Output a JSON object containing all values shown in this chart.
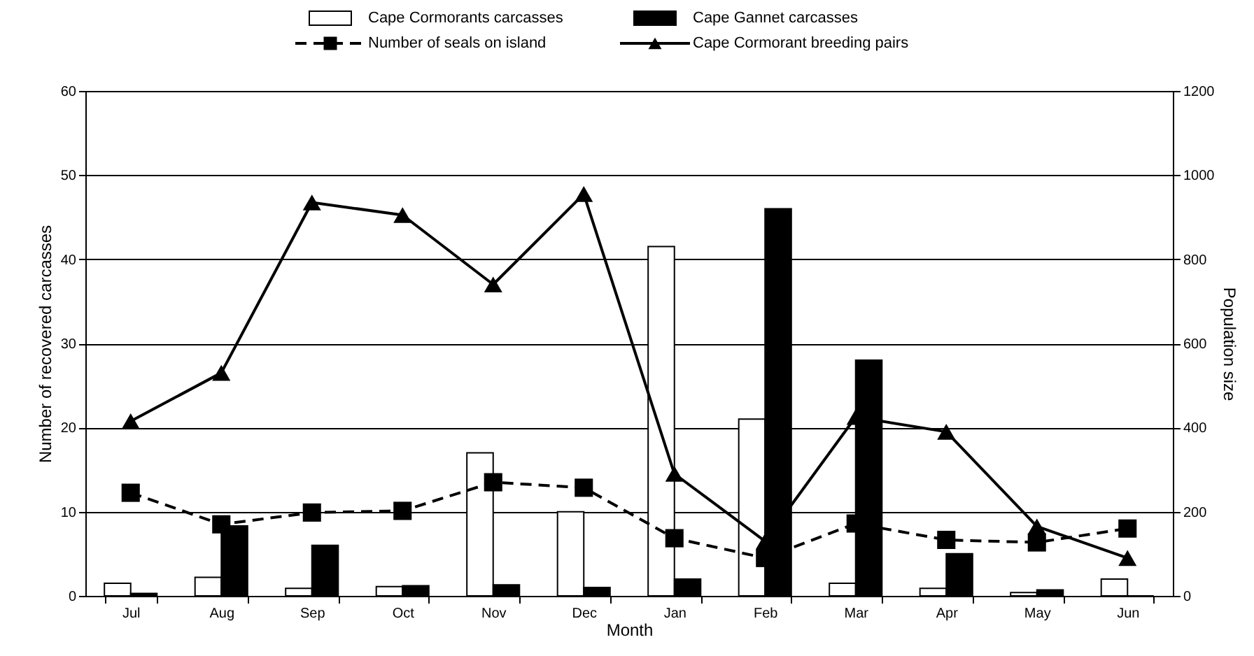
{
  "chart_data": {
    "type": "bar",
    "xlabel": "Month",
    "ylabel": "Number of recovered carcasses",
    "y2label": "Population size",
    "categories": [
      "Jul",
      "Aug",
      "Sep",
      "Oct",
      "Nov",
      "Dec",
      "Jan",
      "Feb",
      "Mar",
      "Apr",
      "May",
      "Jun"
    ],
    "series": [
      {
        "name": "Cape Cormorants carcasses",
        "color": "#ffffff",
        "values": [
          1.5,
          2.2,
          0.9,
          1.1,
          17,
          10,
          41.5,
          21,
          1.5,
          0.9,
          0.4,
          2
        ]
      },
      {
        "name": "Cape Gannet carcasses",
        "color": "#000000",
        "values": [
          0.3,
          8.3,
          6,
          1.2,
          1.3,
          1,
          2,
          46,
          28,
          5,
          0.7,
          0
        ]
      },
      {
        "name": "Number of seals on island",
        "type": "line",
        "axis": "y2",
        "color": "#000000",
        "marker": "square",
        "line_style": "dashed",
        "values": [
          245,
          170,
          198,
          202,
          270,
          257,
          137,
          90,
          172,
          133,
          127,
          160
        ]
      },
      {
        "name": "Cape Cormorant breeding pairs",
        "type": "line",
        "axis": "y2",
        "color": "#000000",
        "marker": "triangle",
        "line_style": "solid",
        "values": [
          415,
          530,
          935,
          905,
          740,
          955,
          290,
          130,
          425,
          390,
          165,
          90
        ]
      }
    ],
    "ylim": [
      0,
      60
    ],
    "yticks": [
      0,
      10,
      20,
      30,
      40,
      50,
      60
    ],
    "y2lim": [
      0,
      1200
    ],
    "y2ticks": [
      0,
      200,
      400,
      600,
      800,
      1000,
      1200
    ],
    "grid": "y",
    "legend": "top"
  }
}
